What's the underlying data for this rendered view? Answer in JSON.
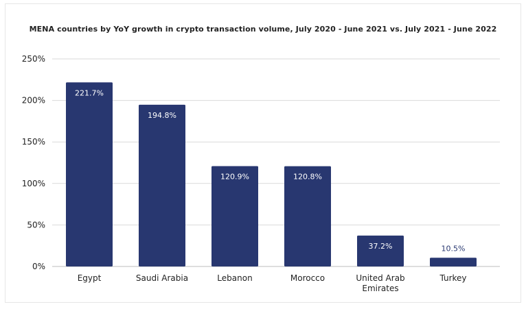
{
  "chart_data": {
    "type": "bar",
    "title": "MENA countries by YoY growth in crypto transaction volume, July 2020 - June 2021 vs. July 2021 - June 2022",
    "xlabel": "",
    "ylabel": "",
    "categories": [
      [
        "Egypt"
      ],
      [
        "Saudi Arabia"
      ],
      [
        "Lebanon"
      ],
      [
        "Morocco"
      ],
      [
        "United Arab",
        "Emirates"
      ],
      [
        "Turkey"
      ]
    ],
    "values": [
      221.7,
      194.8,
      120.9,
      120.8,
      37.2,
      10.5
    ],
    "data_labels": [
      "221.7%",
      "194.8%",
      "120.9%",
      "120.8%",
      "37.2%",
      "10.5%"
    ],
    "ylim": [
      0,
      250
    ],
    "yticks": [
      0,
      50,
      100,
      150,
      200,
      250
    ],
    "ytick_labels": [
      "0%",
      "50%",
      "100%",
      "150%",
      "200%",
      "250%"
    ],
    "grid": true,
    "legend": "none",
    "bar_color": "#283770",
    "label_inside_color": "#ffffff",
    "label_outside_color": "#283770"
  }
}
